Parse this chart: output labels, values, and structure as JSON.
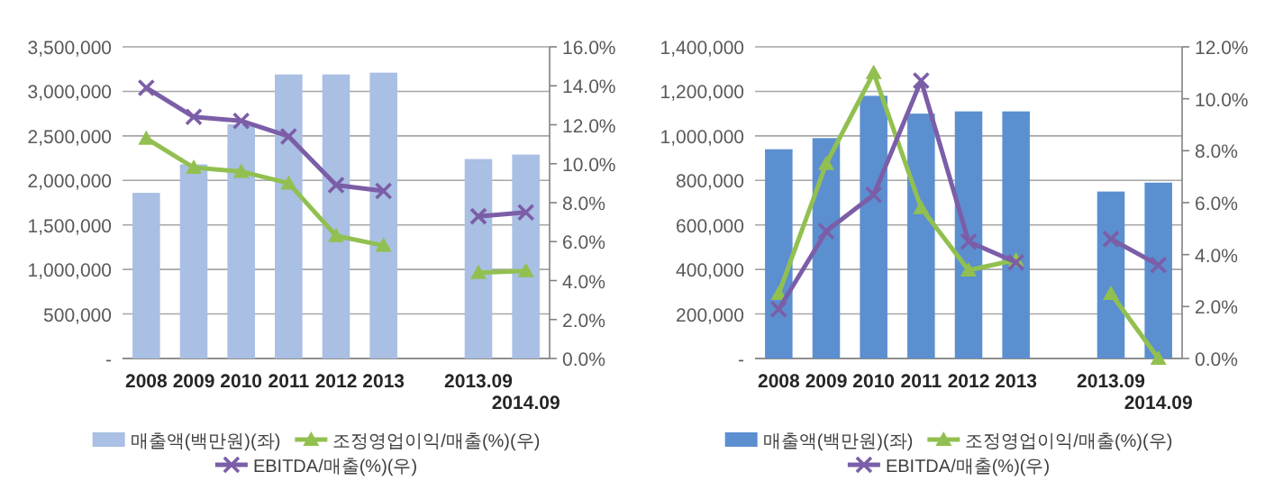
{
  "chart_data": [
    {
      "type": "bar",
      "categories": [
        "2008",
        "2009",
        "2010",
        "2011",
        "2012",
        "2013",
        null,
        "2013.09",
        "2014.09"
      ],
      "series": [
        {
          "name": "매출액(백만원)(좌)",
          "color": "#a9bfe3",
          "values": [
            1860000,
            2180000,
            2630000,
            3190000,
            3190000,
            3210000,
            null,
            2240000,
            2290000
          ]
        },
        {
          "name": "조정영업이익/매출(%)(우)",
          "type": "line",
          "axis": "y2",
          "color": "#92c050",
          "marker": "triangle",
          "values": [
            11.3,
            9.8,
            9.6,
            9.0,
            6.3,
            5.8,
            null,
            4.4,
            4.5
          ]
        },
        {
          "name": "EBITDA/매출(%)(우)",
          "type": "line",
          "axis": "y2",
          "color": "#7b5ea7",
          "marker": "cross",
          "values": [
            13.9,
            12.4,
            12.2,
            11.4,
            8.9,
            8.6,
            null,
            7.3,
            7.5
          ]
        }
      ],
      "ylim": [
        0,
        3500000
      ],
      "yticks": [
        {
          "value": 0,
          "label": "-"
        },
        {
          "value": 500000,
          "label": "500,000"
        },
        {
          "value": 1000000,
          "label": "1,000,000"
        },
        {
          "value": 1500000,
          "label": "1,500,000"
        },
        {
          "value": 2000000,
          "label": "2,000,000"
        },
        {
          "value": 2500000,
          "label": "2,500,000"
        },
        {
          "value": 3000000,
          "label": "3,000,000"
        },
        {
          "value": 3500000,
          "label": "3,500,000"
        }
      ],
      "y2lim": [
        0,
        16
      ],
      "y2ticks": [
        {
          "value": 0,
          "label": "0.0%"
        },
        {
          "value": 2,
          "label": "2.0%"
        },
        {
          "value": 4,
          "label": "4.0%"
        },
        {
          "value": 6,
          "label": "6.0%"
        },
        {
          "value": 8,
          "label": "8.0%"
        },
        {
          "value": 10,
          "label": "10.0%"
        },
        {
          "value": 12,
          "label": "12.0%"
        },
        {
          "value": 14,
          "label": "14.0%"
        },
        {
          "value": 16,
          "label": "16.0%"
        }
      ],
      "grid": "y",
      "legend": "bottom"
    },
    {
      "type": "bar",
      "categories": [
        "2008",
        "2009",
        "2010",
        "2011",
        "2012",
        "2013",
        null,
        "2013.09",
        "2014.09"
      ],
      "series": [
        {
          "name": "매출액(백만원)(좌)",
          "color": "#5b8fd0",
          "values": [
            940000,
            990000,
            1180000,
            1100000,
            1110000,
            1110000,
            null,
            750000,
            790000
          ]
        },
        {
          "name": "조정영업이익/매출(%)(우)",
          "type": "line",
          "axis": "y2",
          "color": "#92c050",
          "marker": "triangle",
          "values": [
            2.5,
            7.5,
            11.0,
            5.8,
            3.4,
            3.8,
            null,
            2.5,
            0.0
          ]
        },
        {
          "name": "EBITDA/매출(%)(우)",
          "type": "line",
          "axis": "y2",
          "color": "#7b5ea7",
          "marker": "cross",
          "values": [
            1.9,
            4.9,
            6.3,
            10.7,
            4.5,
            3.7,
            null,
            4.6,
            3.6
          ]
        }
      ],
      "ylim": [
        0,
        1400000
      ],
      "yticks": [
        {
          "value": 0,
          "label": "-"
        },
        {
          "value": 200000,
          "label": "200,000"
        },
        {
          "value": 400000,
          "label": "400,000"
        },
        {
          "value": 600000,
          "label": "600,000"
        },
        {
          "value": 800000,
          "label": "800,000"
        },
        {
          "value": 1000000,
          "label": "1,000,000"
        },
        {
          "value": 1200000,
          "label": "1,200,000"
        },
        {
          "value": 1400000,
          "label": "1,400,000"
        }
      ],
      "y2lim": [
        0,
        12
      ],
      "y2ticks": [
        {
          "value": 0,
          "label": "0.0%"
        },
        {
          "value": 2,
          "label": "2.0%"
        },
        {
          "value": 4,
          "label": "4.0%"
        },
        {
          "value": 6,
          "label": "6.0%"
        },
        {
          "value": 8,
          "label": "8.0%"
        },
        {
          "value": 10,
          "label": "10.0%"
        },
        {
          "value": 12,
          "label": "12.0%"
        }
      ],
      "grid": "y",
      "legend": "bottom"
    }
  ]
}
